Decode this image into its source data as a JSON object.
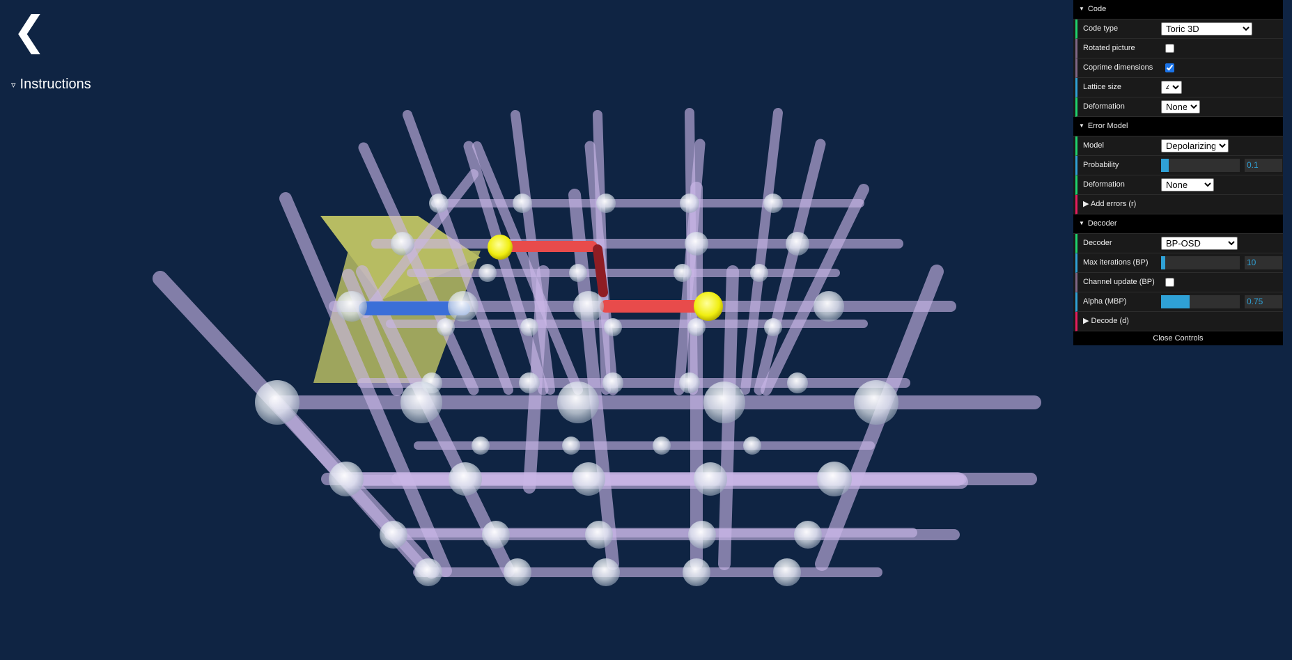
{
  "nav": {
    "back_glyph": "❮",
    "instructions_label": "Instructions",
    "instructions_icon": "triangle-down-icon"
  },
  "gui": {
    "code": {
      "title": "Code",
      "code_type_label": "Code type",
      "code_type_value": "Toric 3D",
      "rotated_picture_label": "Rotated picture",
      "rotated_picture_checked": false,
      "coprime_label": "Coprime dimensions",
      "coprime_checked": true,
      "lattice_size_label": "Lattice size",
      "lattice_size_value": "4",
      "deformation_label": "Deformation",
      "deformation_value": "None"
    },
    "error_model": {
      "title": "Error Model",
      "model_label": "Model",
      "model_value": "Depolarizing",
      "probability_label": "Probability",
      "probability_value": "0.1",
      "probability_fraction": 0.1,
      "deformation_label": "Deformation",
      "deformation_value": "None",
      "add_errors_label": "▶ Add errors (r)"
    },
    "decoder": {
      "title": "Decoder",
      "decoder_label": "Decoder",
      "decoder_value": "BP-OSD",
      "max_iter_label": "Max iterations (BP)",
      "max_iter_value": "10",
      "max_iter_fraction": 0.05,
      "channel_update_label": "Channel update (BP)",
      "channel_update_checked": false,
      "alpha_label": "Alpha (MBP)",
      "alpha_value": "0.75",
      "alpha_fraction": 0.36,
      "decode_label": "▶ Decode (d)"
    },
    "close_label": "Close Controls"
  },
  "colors": {
    "background": "#0f2443",
    "edge": "#c9b6e6",
    "qubit_sphere": "#e8eef5",
    "error_x": "#e84b4b",
    "error_z": "#3b6fd8",
    "syndrome": "#f2f20f",
    "stabilizer_face": "#e8e86a",
    "gui_bg": "#1a1a1a",
    "gui_accent": "#2fa1d6"
  }
}
